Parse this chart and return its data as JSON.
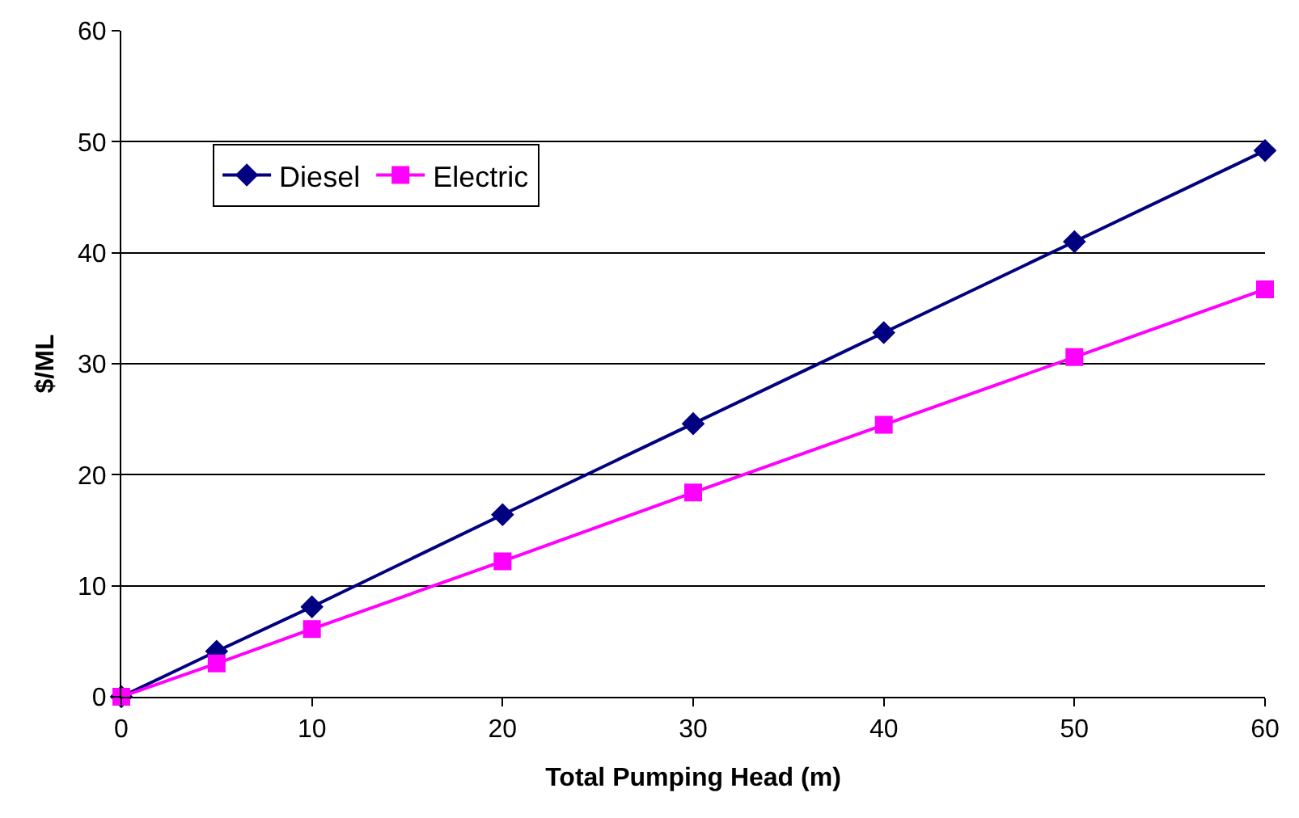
{
  "chart_data": {
    "type": "line",
    "xlabel": "Total Pumping Head (m)",
    "ylabel": "$/ML",
    "x": [
      0,
      5,
      10,
      20,
      30,
      40,
      50,
      60
    ],
    "series": [
      {
        "name": "Diesel",
        "color": "#000080",
        "marker": "diamond",
        "values": [
          0,
          4.1,
          8.1,
          16.4,
          24.6,
          32.8,
          41.0,
          49.2
        ]
      },
      {
        "name": "Electric",
        "color": "#ff00ff",
        "marker": "square",
        "values": [
          0,
          3.0,
          6.1,
          12.2,
          18.4,
          24.5,
          30.6,
          36.7
        ]
      }
    ],
    "xlim": [
      0,
      60
    ],
    "xticks": [
      0,
      10,
      20,
      30,
      40,
      50,
      60
    ],
    "ylim": [
      0,
      60
    ],
    "yticks": [
      0,
      10,
      20,
      30,
      40,
      50,
      60
    ],
    "grid": "y",
    "legend": "top left",
    "line_style": "solid"
  }
}
